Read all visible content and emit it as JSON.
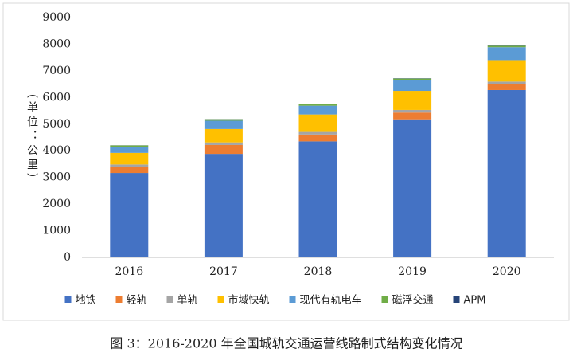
{
  "chart_data": {
    "type": "stacked_bar",
    "y_label": "（单位：公里）",
    "caption": "图 3：2016-2020 年全国城轨交通运营线路制式结构变化情况",
    "categories": [
      "2016",
      "2017",
      "2018",
      "2019",
      "2020"
    ],
    "series": [
      {
        "name": "地铁",
        "color": "#4472c4",
        "values": [
          3168,
          3884,
          4354,
          5180,
          6280
        ]
      },
      {
        "name": "轻轨",
        "color": "#ed7d31",
        "values": [
          230,
          333,
          255,
          255,
          219
        ]
      },
      {
        "name": "单轨",
        "color": "#a5a5a5",
        "values": [
          89,
          98,
          98,
          98,
          98
        ]
      },
      {
        "name": "市域快轨",
        "color": "#ffc000",
        "values": [
          434,
          502,
          656,
          715,
          805
        ]
      },
      {
        "name": "现代有轨电车",
        "color": "#5b9bd5",
        "values": [
          233,
          311,
          328,
          405,
          485
        ]
      },
      {
        "name": "磁浮交通",
        "color": "#70ad47",
        "values": [
          48,
          57,
          57,
          58,
          58
        ]
      },
      {
        "name": "APM",
        "color": "#264478",
        "values": [
          4,
          4,
          10,
          10,
          10
        ]
      }
    ],
    "ylim": [
      0,
      9000
    ],
    "yticks": [
      0,
      1000,
      2000,
      3000,
      4000,
      5000,
      6000,
      7000,
      8000,
      9000
    ],
    "grid": false
  }
}
